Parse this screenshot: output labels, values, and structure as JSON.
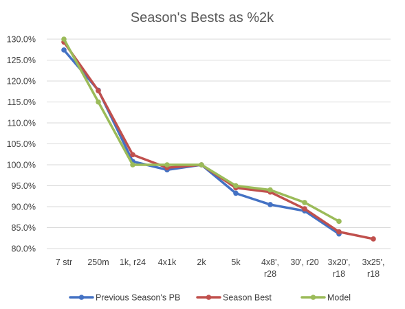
{
  "chart_data": {
    "type": "line",
    "title": "Season's Bests as %2k",
    "xlabel": "",
    "ylabel": "",
    "categories": [
      [
        "7 str"
      ],
      [
        "250m"
      ],
      [
        "1k, r24"
      ],
      [
        "4x1k"
      ],
      [
        "2k"
      ],
      [
        "5k"
      ],
      [
        "4x8',",
        "r28"
      ],
      [
        "30', r20"
      ],
      [
        "3x20',",
        "r18"
      ],
      [
        "3x25',",
        "r18"
      ]
    ],
    "y_ticks": [
      "80.0%",
      "85.0%",
      "90.0%",
      "95.0%",
      "100.0%",
      "105.0%",
      "110.0%",
      "115.0%",
      "120.0%",
      "125.0%",
      "130.0%"
    ],
    "ylim": [
      80,
      130
    ],
    "grid": true,
    "legend_position": "bottom",
    "series": [
      {
        "name": "Previous Season's PB",
        "color": "#4472c4",
        "values": [
          127.4,
          117.8,
          100.8,
          98.8,
          100.0,
          93.2,
          90.5,
          89.0,
          83.5,
          null
        ]
      },
      {
        "name": "Season Best",
        "color": "#c0504d",
        "values": [
          129.3,
          117.7,
          102.4,
          99.3,
          100.0,
          94.5,
          93.5,
          89.5,
          84.0,
          82.3
        ]
      },
      {
        "name": "Model",
        "color": "#9bbb59",
        "values": [
          130.0,
          115.0,
          100.0,
          100.0,
          100.0,
          95.0,
          94.0,
          91.0,
          86.5,
          null
        ]
      }
    ]
  }
}
